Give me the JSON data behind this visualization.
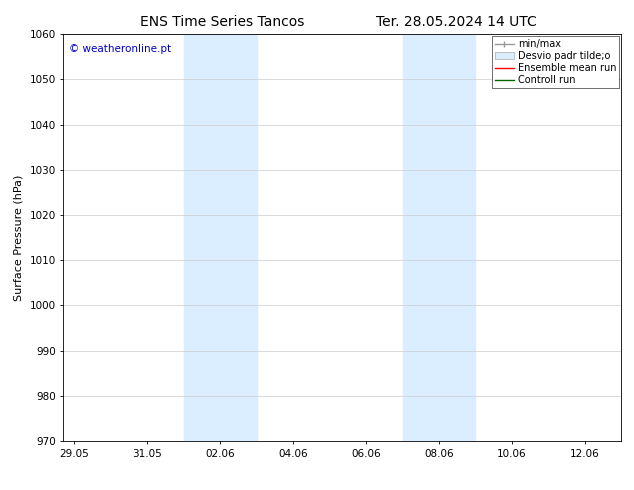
{
  "title_left": "ENS Time Series Tancos",
  "title_right": "Ter. 28.05.2024 14 UTC",
  "ylabel": "Surface Pressure (hPa)",
  "ylim": [
    970,
    1060
  ],
  "yticks": [
    970,
    980,
    990,
    1000,
    1010,
    1020,
    1030,
    1040,
    1050,
    1060
  ],
  "xtick_labels": [
    "29.05",
    "31.05",
    "02.06",
    "04.06",
    "06.06",
    "08.06",
    "10.06",
    "12.06"
  ],
  "xtick_positions": [
    0,
    2,
    4,
    6,
    8,
    10,
    12,
    14
  ],
  "xmin": -0.3,
  "xmax": 15.0,
  "shaded_bands": [
    {
      "x_start": 3.0,
      "x_end": 5.0,
      "color": "#daeeff"
    },
    {
      "x_start": 9.0,
      "x_end": 11.0,
      "color": "#daeeff"
    }
  ],
  "watermark": "© weatheronline.pt",
  "watermark_color": "#0000cc",
  "legend_entries": [
    {
      "label": "min/max",
      "color": "#aaaaaa",
      "style": "errorbar"
    },
    {
      "label": "Desvio padr tilde;o",
      "color": "#ccddee",
      "style": "patch"
    },
    {
      "label": "Ensemble mean run",
      "color": "#ff0000",
      "style": "line"
    },
    {
      "label": "Controll run",
      "color": "#006600",
      "style": "line"
    }
  ],
  "background_color": "#ffffff",
  "grid_color": "#cccccc",
  "title_fontsize": 10,
  "tick_fontsize": 7.5,
  "ylabel_fontsize": 8,
  "watermark_fontsize": 7.5,
  "legend_fontsize": 7
}
